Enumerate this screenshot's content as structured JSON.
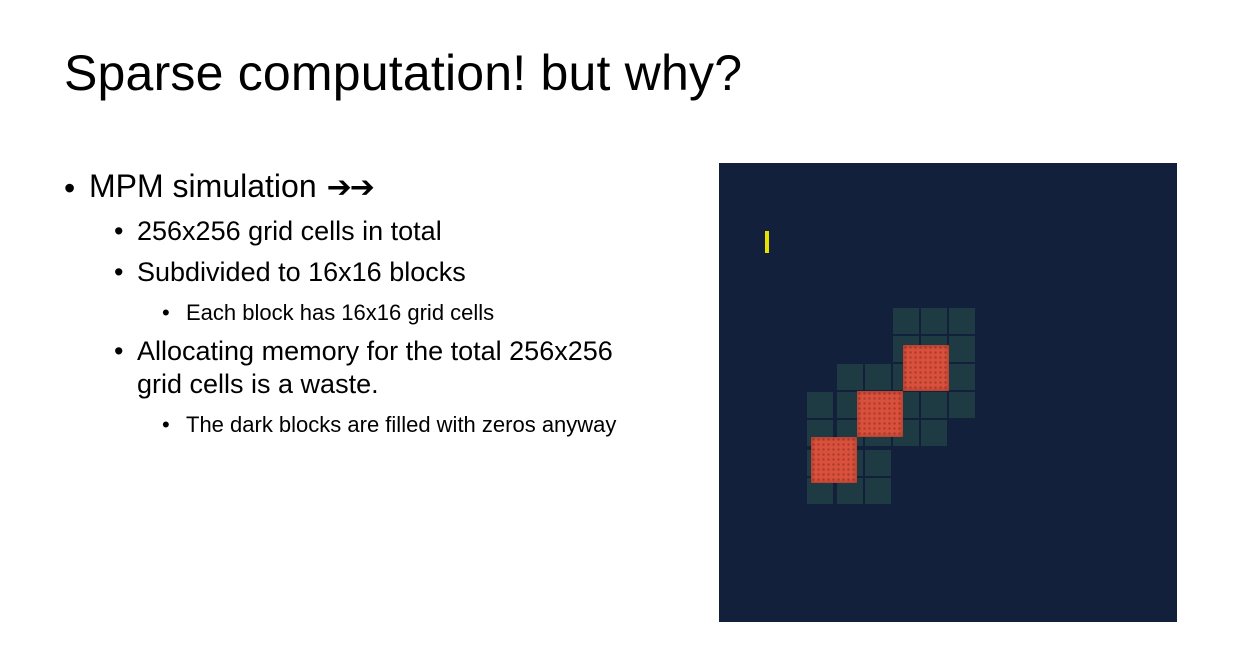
{
  "title": "Sparse computation! but why?",
  "bullets": {
    "b1": {
      "text": "MPM simulation",
      "arrows": "➔➔"
    },
    "b2": {
      "text": "256x256 grid cells in total"
    },
    "b3": {
      "text": "Subdivided to 16x16 blocks"
    },
    "b4": {
      "text": "Each block has 16x16 grid cells"
    },
    "b5": {
      "line1": "Allocating memory for the total 256x256",
      "line2": "grid cells is a waste."
    },
    "b6": {
      "text": "The dark blocks are filled with zeros anyway"
    }
  },
  "bullet_char": "•",
  "colors": {
    "panel_background": "#13203b",
    "active_block": "#1e3a42",
    "particles": "#d9503d",
    "marker": "#e8e000"
  }
}
